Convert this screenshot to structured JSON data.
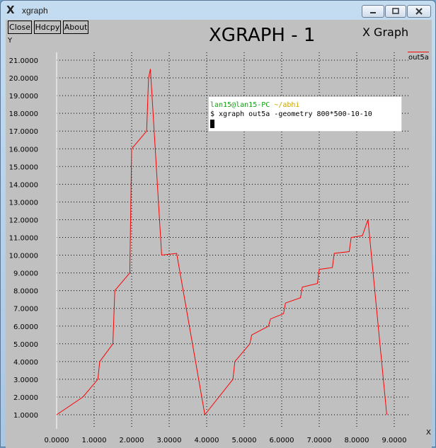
{
  "window": {
    "title": "xgraph",
    "app_icon": "x-logo-icon"
  },
  "toolbar": {
    "close_label": "Close",
    "hdcpy_label": "Hdcpy",
    "about_label": "About"
  },
  "graph": {
    "title": "XGRAPH - 1",
    "subtitle": "X Graph",
    "y_axis_letter": "Y",
    "x_axis_letter": "X"
  },
  "terminal": {
    "user_host": "lan15@lan15-PC",
    "path": "~/abhi",
    "command": "$ xgraph out5a -geometry 800*500-10-10"
  },
  "colors": {
    "series": "#ff0000",
    "background": "#c0c0c0"
  },
  "chart_data": {
    "type": "line",
    "title": "XGRAPH - 1",
    "subtitle": "X Graph",
    "xlabel": "X",
    "ylabel": "Y",
    "xlim": [
      0,
      9
    ],
    "ylim": [
      1,
      21
    ],
    "x_ticks": [
      "0.0000",
      "1.0000",
      "2.0000",
      "3.0000",
      "4.0000",
      "5.0000",
      "6.0000",
      "7.0000",
      "8.0000",
      "9.0000"
    ],
    "y_ticks": [
      "1.0000",
      "2.0000",
      "3.0000",
      "4.0000",
      "5.0000",
      "6.0000",
      "7.0000",
      "8.0000",
      "9.0000",
      "10.0000",
      "11.0000",
      "12.0000",
      "13.0000",
      "14.0000",
      "15.0000",
      "16.0000",
      "17.0000",
      "18.0000",
      "19.0000",
      "20.0000",
      "21.0000"
    ],
    "grid": true,
    "legend": "top-right",
    "series": [
      {
        "name": "out5a",
        "x": [
          0.0,
          0.7,
          1.1,
          1.15,
          1.5,
          1.55,
          1.95,
          2.0,
          2.4,
          2.45,
          2.5,
          2.8,
          3.2,
          3.95,
          4.7,
          4.75,
          5.15,
          5.2,
          5.65,
          5.7,
          6.05,
          6.1,
          6.5,
          6.55,
          6.95,
          7.0,
          7.35,
          7.4,
          7.8,
          7.85,
          8.15,
          8.3,
          8.8
        ],
        "y": [
          1.0,
          2.0,
          3.0,
          4.0,
          5.0,
          8.0,
          9.0,
          16.0,
          17.0,
          20.0,
          20.5,
          10.0,
          10.1,
          1.0,
          3.0,
          4.0,
          5.0,
          5.5,
          6.0,
          6.4,
          6.7,
          7.3,
          7.6,
          8.2,
          8.4,
          9.2,
          9.3,
          10.1,
          10.2,
          11.0,
          11.1,
          12.0,
          1.0
        ]
      }
    ]
  }
}
